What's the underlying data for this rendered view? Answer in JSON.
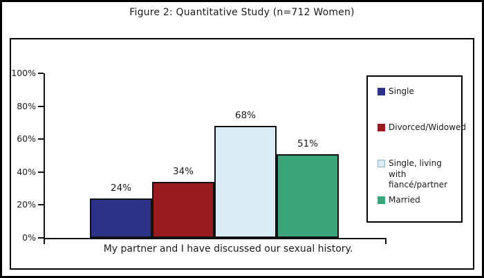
{
  "title": "Figure 2: Quantitative Study (n=712 Women)",
  "chart_data": {
    "type": "bar",
    "title": "Figure 2: Quantitative Study (n=712 Women)",
    "categories": [
      "Single",
      "Divorced/Widowed",
      "Single, living with fiancé/partner",
      "Married"
    ],
    "values": [
      24,
      34,
      68,
      51
    ],
    "value_labels": [
      "24%",
      "34%",
      "68%",
      "51%"
    ],
    "colors": [
      "#2b3287",
      "#981c1f",
      "#daecf6",
      "#3ba57a"
    ],
    "swatch_border_colors": [
      "#2b3287",
      "#981c1f",
      "#8fb0c4",
      "#3ba57a"
    ],
    "xlabel": "My partner and I have discussed our sexual history.",
    "ylabel": "",
    "ylim": [
      0,
      100
    ],
    "ytick_labels": [
      "0%",
      "20%",
      "40%",
      "60%",
      "80%",
      "100%"
    ],
    "grid": false,
    "legend_position": "right",
    "legend": [
      {
        "label": "Single",
        "color": "#2b3287"
      },
      {
        "label": "Divorced/Widowed",
        "color": "#981c1f"
      },
      {
        "label": "Single, living with fiancé/partner",
        "color": "#daecf6"
      },
      {
        "label": "Married",
        "color": "#3ba57a"
      }
    ],
    "axis_color": "#111111"
  }
}
